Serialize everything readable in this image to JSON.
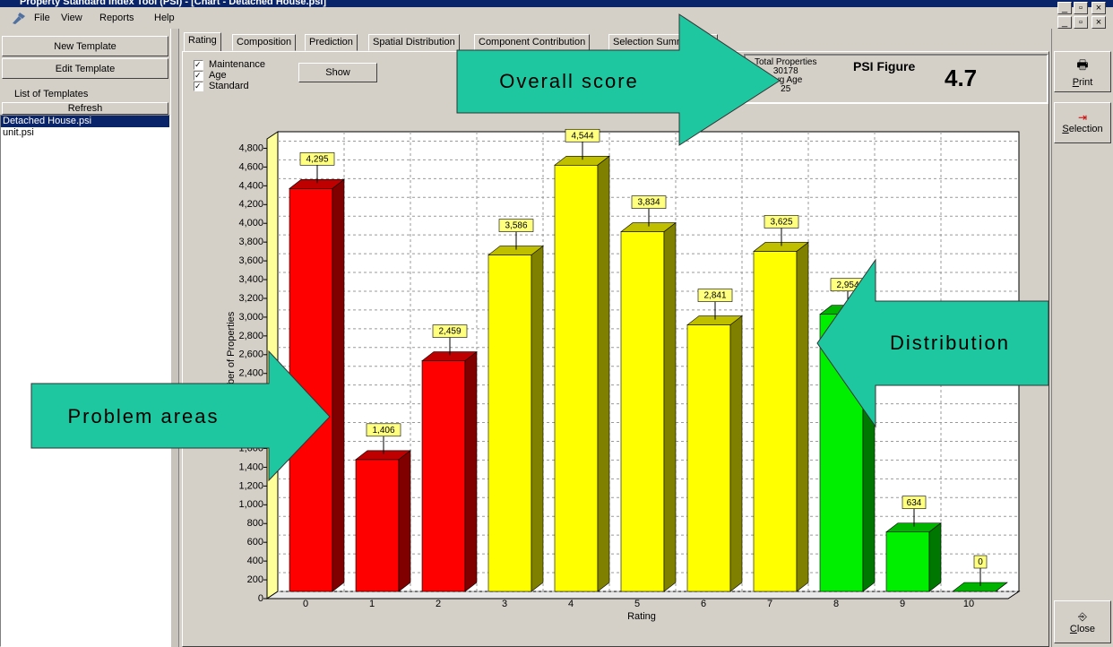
{
  "window": {
    "title": "Property Standard Index Tool (PSI) - [Chart - Detached House.psi]",
    "menu": [
      "File",
      "View",
      "Reports",
      "Help"
    ]
  },
  "sidebar": {
    "new_template": "New Template",
    "edit_template": "Edit Template",
    "list_label": "List of Templates",
    "refresh": "Refresh",
    "templates": [
      "Detached House.psi",
      "unit.psi"
    ]
  },
  "tabs": [
    "Rating",
    "Composition",
    "Prediction",
    "Spatial Distribution",
    "Component Contribution",
    "Selection Summary"
  ],
  "filters": {
    "options": [
      "Maintenance",
      "Age",
      "Standard"
    ],
    "button": "Show"
  },
  "stats": {
    "total_label": "Total Properties",
    "total": 30178,
    "age_label": "Avg Age",
    "age": 25,
    "psi_label": "PSI Figure",
    "psi": 4.7
  },
  "toolbar": [
    "Print",
    "Selection",
    "Close"
  ],
  "annotations": [
    "Overall score",
    "Distribution",
    "Problem areas"
  ],
  "chart_data": {
    "type": "bar3d",
    "x_label": "Rating",
    "y_label": "Number of Properties",
    "categories": [
      "0",
      "1",
      "2",
      "3",
      "4",
      "5",
      "6",
      "7",
      "8",
      "9",
      "10"
    ],
    "values": [
      4295,
      1406,
      2459,
      3586,
      4544,
      3834,
      2841,
      3625,
      2954,
      634,
      0
    ],
    "value_labels": [
      "4,295",
      "1,406",
      "2,459",
      "3,586",
      "4,544",
      "3,834",
      "2,841",
      "3,625",
      "2,954",
      "634",
      "0"
    ],
    "colors": [
      "#ff0000",
      "#ff0000",
      "#ff0000",
      "#ffff00",
      "#ffff00",
      "#ffff00",
      "#ffff00",
      "#ffff00",
      "#00ee00",
      "#00ee00",
      "#00ee00"
    ],
    "ylim": [
      0,
      4900
    ],
    "yticks": [
      0,
      200,
      400,
      600,
      800,
      {
        "value": 1000,
        "label": "1,000"
      },
      {
        "value": 1200,
        "label": "1,200"
      },
      {
        "value": 1400,
        "label": "1,400"
      },
      {
        "value": 1600,
        "label": "1,600"
      },
      {
        "value": 1800,
        "label": "1,800"
      },
      {
        "value": 2000,
        "label": "2,000"
      },
      {
        "value": 2200,
        "label": "2,200"
      },
      {
        "value": 2400,
        "label": "2,400"
      },
      {
        "value": 2600,
        "label": "2,600"
      },
      {
        "value": 2800,
        "label": "2,800"
      },
      {
        "value": 3000,
        "label": "3,000"
      },
      {
        "value": 3200,
        "label": "3,200"
      },
      {
        "value": 3400,
        "label": "3,400"
      },
      {
        "value": 3600,
        "label": "3,600"
      },
      {
        "value": 3800,
        "label": "3,800"
      },
      {
        "value": 4000,
        "label": "4,000"
      },
      {
        "value": 4200,
        "label": "4,200"
      },
      {
        "value": 4400,
        "label": "4,400"
      },
      {
        "value": 4600,
        "label": "4,600"
      },
      {
        "value": 4800,
        "label": "4,800"
      }
    ],
    "grid": true
  }
}
